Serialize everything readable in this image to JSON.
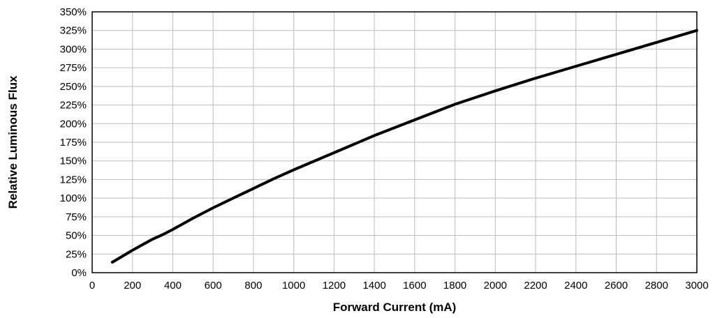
{
  "chart_data": {
    "type": "line",
    "title": "",
    "xlabel": "Forward Current (mA)",
    "ylabel": "Relative Luminous Flux",
    "xlim": [
      0,
      3000
    ],
    "ylim": [
      0,
      350
    ],
    "x_ticks": [
      0,
      200,
      400,
      600,
      800,
      1000,
      1200,
      1400,
      1600,
      1800,
      2000,
      2200,
      2400,
      2600,
      2800,
      3000
    ],
    "x_tick_labels": [
      "0",
      "200",
      "400",
      "600",
      "800",
      "1000",
      "1200",
      "1400",
      "1600",
      "1800",
      "2000",
      "2200",
      "2400",
      "2600",
      "2800",
      "3000"
    ],
    "y_ticks": [
      0,
      25,
      50,
      75,
      100,
      125,
      150,
      175,
      200,
      225,
      250,
      275,
      300,
      325,
      350
    ],
    "y_tick_labels": [
      "0%",
      "25%",
      "50%",
      "75%",
      "100%",
      "125%",
      "150%",
      "175%",
      "200%",
      "225%",
      "250%",
      "275%",
      "300%",
      "325%",
      "350%"
    ],
    "grid": true,
    "legend": "none",
    "line_color": "#000000",
    "grid_color": "#bdbdbd",
    "series": [
      {
        "x": [
          100,
          200,
          300,
          350,
          400,
          500,
          600,
          700,
          800,
          900,
          1000,
          1200,
          1400,
          1600,
          1800,
          2000,
          2200,
          2400,
          2600,
          2800,
          3000
        ],
        "y": [
          14,
          30,
          45,
          51,
          58,
          73,
          87,
          100,
          113,
          126,
          138,
          161,
          184,
          205,
          226,
          244,
          261,
          277,
          293,
          309,
          325
        ]
      }
    ]
  }
}
